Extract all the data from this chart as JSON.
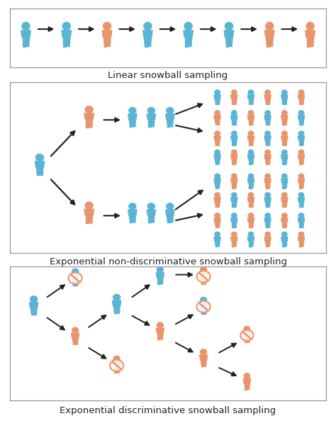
{
  "bg_color": "#ffffff",
  "blue": "#5ab4d6",
  "orange": "#e8956d",
  "dark": "#222222",
  "border_color": "#999999",
  "label1": "Linear snowball sampling",
  "label2": "Exponential non-discriminative snowball sampling",
  "label3": "Exponential discriminative snowball sampling",
  "label_fontsize": 9.5,
  "panel1_colors": [
    "blue",
    "blue",
    "orange",
    "blue",
    "blue",
    "blue",
    "orange",
    "orange"
  ],
  "panel2_upper_trio": [
    "blue",
    "blue",
    "blue"
  ],
  "panel2_lower_trio": [
    "blue",
    "blue",
    "blue"
  ],
  "panel2_upper_rows": [
    [
      "blue",
      "orange",
      "blue",
      "orange",
      "blue",
      "blue"
    ],
    [
      "orange",
      "blue",
      "orange",
      "blue",
      "orange",
      "blue"
    ]
  ],
  "panel2_lower_rows": [
    [
      "orange",
      "blue",
      "orange",
      "blue",
      "orange",
      "blue"
    ],
    [
      "blue",
      "orange",
      "blue",
      "orange",
      "blue",
      "orange"
    ]
  ],
  "panel2_upper2_rows": [
    [
      "blue",
      "orange",
      "blue",
      "orange",
      "blue",
      "blue"
    ],
    [
      "orange",
      "blue",
      "orange",
      "blue",
      "orange",
      "blue"
    ]
  ],
  "panel2_lower2_rows": [
    [
      "orange",
      "blue",
      "orange",
      "blue",
      "orange",
      "blue"
    ],
    [
      "blue",
      "orange",
      "blue",
      "orange",
      "blue",
      "orange"
    ]
  ]
}
